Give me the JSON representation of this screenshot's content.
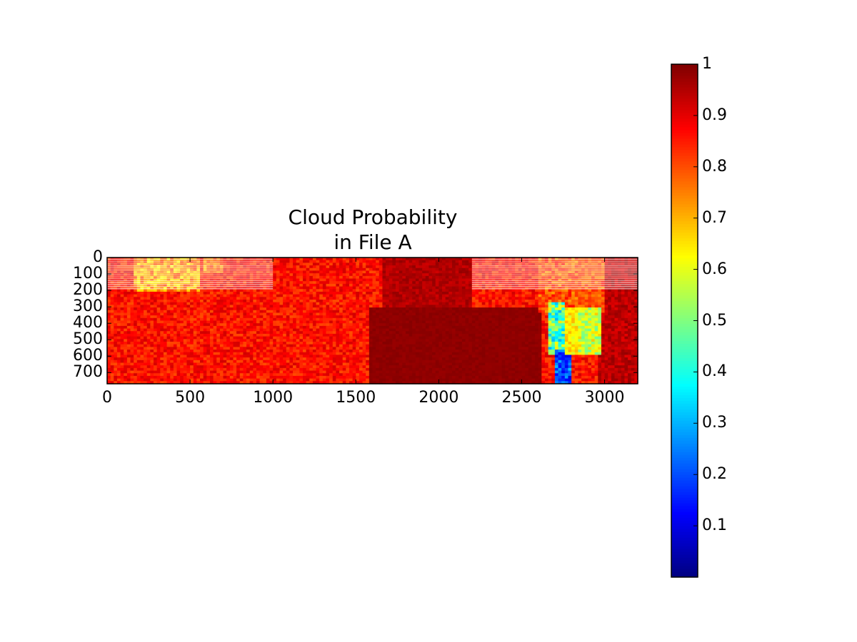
{
  "chart_data": [
    {
      "type": "heatmap",
      "title": [
        "Cloud Probability",
        "in File A"
      ],
      "xlabel": "",
      "ylabel": "",
      "xlim": [
        0,
        3200
      ],
      "ylim": [
        768,
        0
      ],
      "x_ticks": [
        "0",
        "500",
        "1000",
        "1500",
        "2000",
        "2500",
        "3000"
      ],
      "y_ticks": [
        "0",
        "100",
        "200",
        "300",
        "400",
        "500",
        "600",
        "700"
      ],
      "value_range": [
        0,
        1
      ],
      "colormap": "jet",
      "grid": false,
      "description_regions": [
        {
          "x": [
            0,
            1000
          ],
          "y": [
            0,
            768
          ],
          "approx_value": 0.85
        },
        {
          "x": [
            150,
            550
          ],
          "y": [
            0,
            200
          ],
          "approx_value": 0.65
        },
        {
          "x": [
            1000,
            1600
          ],
          "y": [
            0,
            768
          ],
          "approx_value": 0.88
        },
        {
          "x": [
            1600,
            2600
          ],
          "y": [
            300,
            768
          ],
          "approx_value": 0.98
        },
        {
          "x": [
            2650,
            2850
          ],
          "y": [
            350,
            768
          ],
          "approx_value": 0.25
        },
        {
          "x": [
            2850,
            3000
          ],
          "y": [
            300,
            600
          ],
          "approx_value": 0.55
        },
        {
          "x": [
            3000,
            3200
          ],
          "y": [
            0,
            768
          ],
          "approx_value": 0.93
        }
      ]
    },
    {
      "type": "colorbar",
      "ticks": [
        "0.1",
        "0.2",
        "0.3",
        "0.4",
        "0.5",
        "0.6",
        "0.7",
        "0.8",
        "0.9",
        "1"
      ],
      "tick_values": [
        0.1,
        0.2,
        0.3,
        0.4,
        0.5,
        0.6,
        0.7,
        0.8,
        0.9,
        1.0
      ],
      "range": [
        0,
        1
      ],
      "colors": [
        "#00007f",
        "#0000ff",
        "#007fff",
        "#00ffff",
        "#7fff7f",
        "#ffff00",
        "#ff7f00",
        "#ff0000",
        "#7f0000"
      ]
    }
  ]
}
